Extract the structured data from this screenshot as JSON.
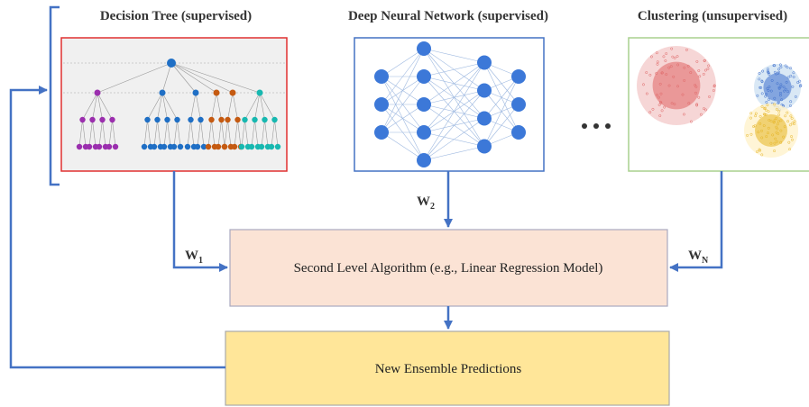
{
  "models": [
    {
      "title": "Decision Tree (supervised)",
      "weight": {
        "base": "W",
        "sub": "1"
      }
    },
    {
      "title": "Deep Neural Network (supervised)",
      "weight": {
        "base": "W",
        "sub": "2"
      }
    },
    {
      "title": "Clustering (unsupervised)",
      "weight": {
        "base": "W",
        "sub": "N"
      }
    }
  ],
  "second_level": "Second Level Algorithm (e.g., Linear Regression Model)",
  "output": "New Ensemble Predictions"
}
